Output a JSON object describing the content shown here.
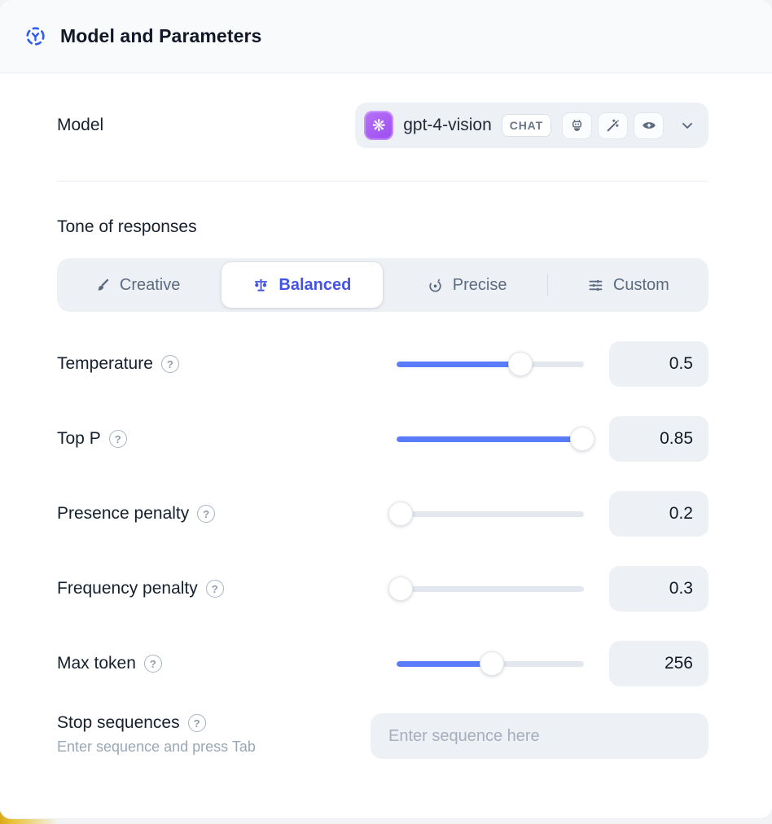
{
  "header": {
    "title": "Model and Parameters"
  },
  "model_row": {
    "label": "Model",
    "selected_model": "gpt-4-vision",
    "badge": "CHAT",
    "capability_icons": [
      "robot-icon",
      "magic-wand-icon",
      "vision-eye-icon"
    ]
  },
  "tone": {
    "title": "Tone of responses",
    "options": [
      {
        "label": "Creative",
        "icon": "paintbrush-icon",
        "selected": false
      },
      {
        "label": "Balanced",
        "icon": "balance-scale-icon",
        "selected": true
      },
      {
        "label": "Precise",
        "icon": "target-icon",
        "selected": false
      },
      {
        "label": "Custom",
        "icon": "sliders-icon",
        "selected": false
      }
    ]
  },
  "parameters": [
    {
      "label": "Temperature",
      "value": "0.5",
      "slider_pct": 66
    },
    {
      "label": "Top P",
      "value": "0.85",
      "slider_pct": 99
    },
    {
      "label": "Presence penalty",
      "value": "0.2",
      "slider_pct": 2
    },
    {
      "label": "Frequency penalty",
      "value": "0.3",
      "slider_pct": 2
    },
    {
      "label": "Max token",
      "value": "256",
      "slider_pct": 51
    }
  ],
  "stop_sequences": {
    "label": "Stop sequences",
    "helper": "Enter sequence and press Tab",
    "placeholder": "Enter sequence here"
  },
  "colors": {
    "accent_blue": "#4353e4",
    "slider_blue": "#5b7cfa",
    "logo_purple": "#a45ef6",
    "header_bg": "#f8fafc",
    "pill_bg": "#edf0f5",
    "bottom_highlight_yellow": "#e0b122"
  }
}
